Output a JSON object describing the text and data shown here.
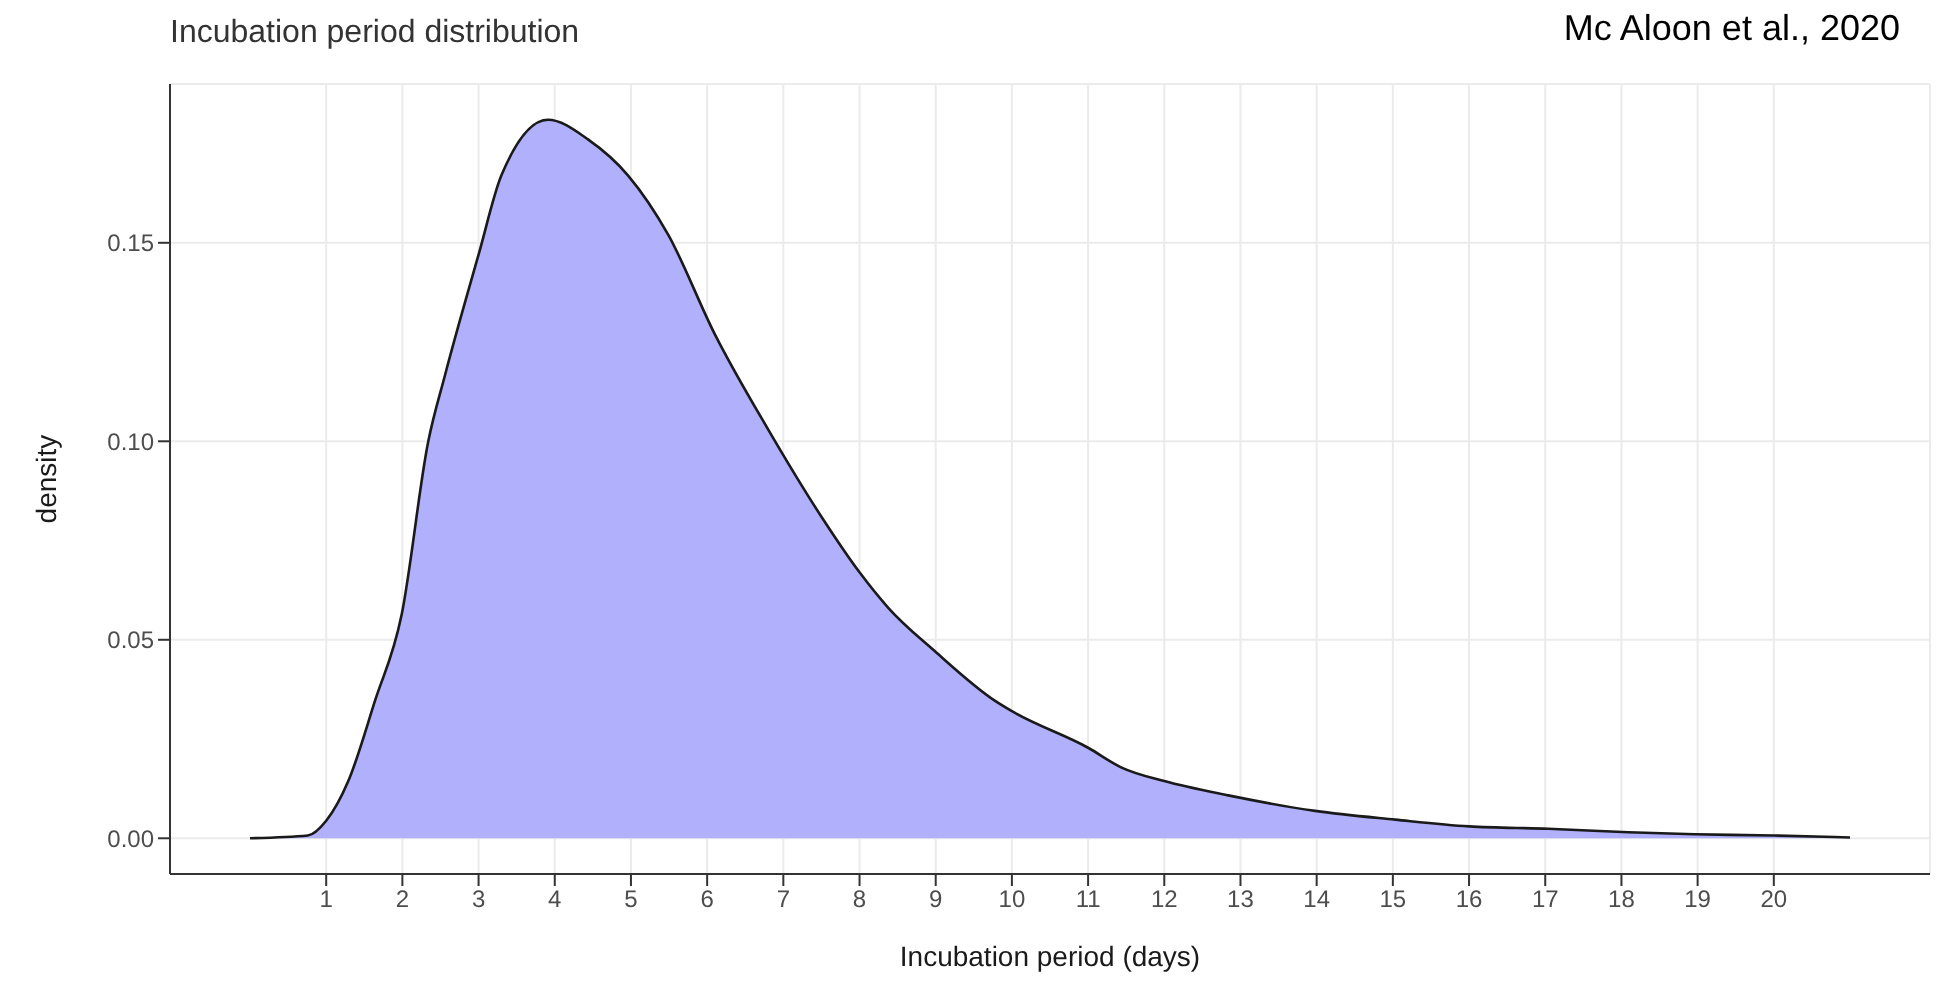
{
  "chart_data": {
    "type": "area",
    "title": "Incubation period distribution",
    "annotations": [
      "Mc Aloon et al., 2020"
    ],
    "xlabel": "Incubation period (days)",
    "ylabel": "density",
    "x": [
      0,
      0.76,
      1.0,
      1.29,
      1.64,
      1.99,
      2.34,
      2.56,
      3.0,
      3.3,
      3.91,
      4.44,
      4.96,
      5.49,
      6.1,
      6.8,
      7.5,
      8.0,
      8.38,
      8.99,
      9.78,
      10.0,
      11.0,
      11.44,
      12.0,
      12.84,
      13.98,
      15.03,
      16.0,
      17.04,
      18.09,
      18.96,
      20.0,
      21.0
    ],
    "series": [
      {
        "color": "#b0b0fc",
        "values": [
          0,
          0.0007,
          0.0044,
          0.0144,
          0.0346,
          0.0563,
          0.1,
          0.1167,
          0.147,
          0.167,
          0.181,
          0.176,
          0.167,
          0.152,
          0.127,
          0.103,
          0.081,
          0.067,
          0.058,
          0.0471,
          0.0346,
          0.032,
          0.0228,
          0.0178,
          0.0144,
          0.0108,
          0.0069,
          0.0047,
          0.003,
          0.0024,
          0.0015,
          0.001,
          0.0007,
          0.0002
        ]
      }
    ],
    "xlim": [
      -1.05,
      22.05
    ],
    "xticks": [
      1,
      2,
      3,
      4,
      5,
      6,
      7,
      8,
      9,
      10,
      11,
      12,
      13,
      14,
      15,
      16,
      17,
      18,
      19,
      20
    ],
    "ylim": [
      -0.009,
      0.19
    ],
    "yticks": [
      {
        "value": 0,
        "label": "0.00"
      },
      {
        "value": 0.05,
        "label": "0.05"
      },
      {
        "value": 0.1,
        "label": "0.10"
      },
      {
        "value": 0.15,
        "label": "0.15"
      }
    ],
    "grid": true
  }
}
